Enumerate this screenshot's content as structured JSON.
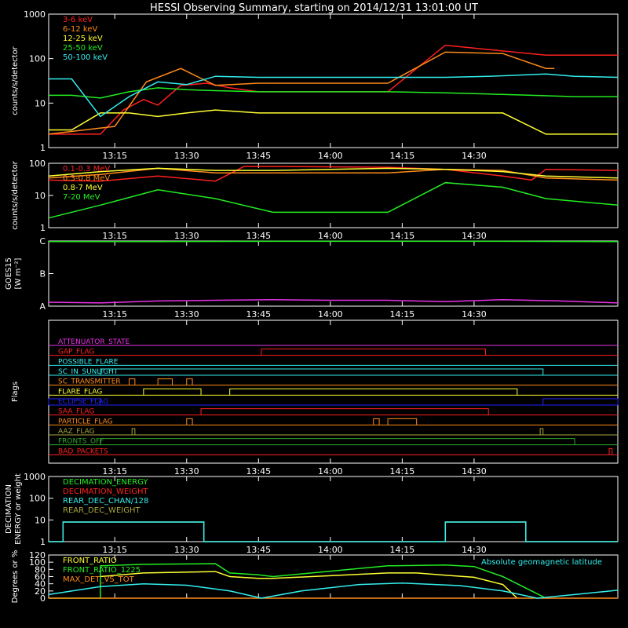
{
  "title": "HESSI Observing Summary, starting on 2014/12/31 13:01:00 UT",
  "x_ticks": [
    "13:15",
    "13:30",
    "13:45",
    "14:00",
    "14:15",
    "14:30"
  ],
  "colors": {
    "c1": "#ff2020",
    "c2": "#ff8c1a",
    "c3": "#ffff33",
    "c4": "#22ee22",
    "c5": "#33eeee",
    "magenta": "#e633e6",
    "blue": "#2222ff",
    "olive": "#a8a43c",
    "green2": "#2eaa2e",
    "cyan": "#33eeee"
  },
  "chart_data": [
    {
      "type": "line",
      "id": "p1",
      "ylabel": "counts/s/detector",
      "yscale": "log",
      "ylim": [
        1,
        1000
      ],
      "ytick_labels": [
        "1",
        "10",
        "100",
        "1000"
      ],
      "legend": [
        "3-6 keV",
        "6-12 keV",
        "12-25 keV",
        "25-50 keV",
        "50-100 keV"
      ],
      "series": [
        {
          "name": "3-6 keV",
          "color": "c1",
          "points": [
            [
              13.02,
              2
            ],
            [
              13.2,
              2
            ],
            [
              13.28,
              7
            ],
            [
              13.35,
              12
            ],
            [
              13.4,
              9
            ],
            [
              13.48,
              25
            ],
            [
              13.57,
              28
            ],
            [
              13.65,
              22
            ],
            [
              13.75,
              18
            ],
            [
              13.8,
              18
            ],
            [
              14.2,
              18
            ],
            [
              14.4,
              200
            ],
            [
              14.55,
              160
            ],
            [
              14.75,
              120
            ],
            [
              14.78,
              120
            ],
            [
              15.0,
              120
            ]
          ]
        },
        {
          "name": "6-12 keV",
          "color": "c2",
          "points": [
            [
              13.02,
              2
            ],
            [
              13.25,
              3
            ],
            [
              13.36,
              30
            ],
            [
              13.48,
              60
            ],
            [
              13.6,
              25
            ],
            [
              13.75,
              28
            ],
            [
              13.8,
              28
            ],
            [
              14.2,
              28
            ],
            [
              14.4,
              140
            ],
            [
              14.6,
              130
            ],
            [
              14.75,
              60
            ],
            [
              14.78,
              60
            ]
          ]
        },
        {
          "name": "12-25 keV",
          "color": "c3",
          "points": [
            [
              13.02,
              2.5
            ],
            [
              13.1,
              2.5
            ],
            [
              13.2,
              6
            ],
            [
              13.3,
              6
            ],
            [
              13.4,
              5
            ],
            [
              13.5,
              6
            ],
            [
              13.6,
              7
            ],
            [
              13.75,
              6
            ],
            [
              13.8,
              6
            ],
            [
              14.2,
              6
            ],
            [
              14.4,
              6
            ],
            [
              14.6,
              6
            ],
            [
              14.75,
              2
            ],
            [
              15.0,
              2
            ]
          ]
        },
        {
          "name": "25-50 keV",
          "color": "c4",
          "points": [
            [
              13.02,
              15
            ],
            [
              13.1,
              15
            ],
            [
              13.2,
              13
            ],
            [
              13.3,
              18
            ],
            [
              13.4,
              22
            ],
            [
              13.5,
              20
            ],
            [
              13.6,
              19
            ],
            [
              13.75,
              18
            ],
            [
              13.8,
              18
            ],
            [
              14.2,
              18
            ],
            [
              14.4,
              17
            ],
            [
              14.55,
              16
            ],
            [
              14.7,
              15
            ],
            [
              14.85,
              14
            ],
            [
              15.0,
              14
            ]
          ]
        },
        {
          "name": "50-100 keV",
          "color": "c5",
          "points": [
            [
              13.02,
              35
            ],
            [
              13.1,
              35
            ],
            [
              13.2,
              5
            ],
            [
              13.3,
              14
            ],
            [
              13.4,
              30
            ],
            [
              13.5,
              26
            ],
            [
              13.6,
              40
            ],
            [
              13.75,
              38
            ],
            [
              13.8,
              38
            ],
            [
              14.2,
              38
            ],
            [
              14.4,
              38
            ],
            [
              14.55,
              40
            ],
            [
              14.75,
              45
            ],
            [
              14.85,
              40
            ],
            [
              15.0,
              38
            ]
          ]
        }
      ]
    },
    {
      "type": "line",
      "id": "p2",
      "ylabel": "counts/s/detector",
      "yscale": "log",
      "ylim": [
        1,
        100
      ],
      "ytick_labels": [
        "1",
        "10",
        "100"
      ],
      "legend": [
        "0.1-0.3 MeV",
        "0.3-0.8 MeV",
        "0.8-7 MeV",
        "7-20 MeV"
      ],
      "series": [
        {
          "name": "0.1-0.3 MeV",
          "color": "c1",
          "points": [
            [
              13.02,
              30
            ],
            [
              13.2,
              28
            ],
            [
              13.4,
              40
            ],
            [
              13.6,
              28
            ],
            [
              13.7,
              80
            ],
            [
              13.8,
              80
            ],
            [
              14.2,
              75
            ],
            [
              14.4,
              65
            ],
            [
              14.6,
              40
            ],
            [
              14.7,
              30
            ],
            [
              14.75,
              65
            ],
            [
              15.0,
              60
            ]
          ]
        },
        {
          "name": "0.3-0.8 MeV",
          "color": "c2",
          "points": [
            [
              13.02,
              35
            ],
            [
              13.2,
              45
            ],
            [
              13.4,
              70
            ],
            [
              13.6,
              50
            ],
            [
              13.8,
              50
            ],
            [
              14.2,
              50
            ],
            [
              14.4,
              65
            ],
            [
              14.6,
              60
            ],
            [
              14.75,
              35
            ],
            [
              15.0,
              30
            ]
          ]
        },
        {
          "name": "0.8-7 MeV",
          "color": "c3",
          "points": [
            [
              13.02,
              40
            ],
            [
              13.2,
              55
            ],
            [
              13.4,
              70
            ],
            [
              13.6,
              60
            ],
            [
              13.8,
              60
            ],
            [
              14.2,
              70
            ],
            [
              14.4,
              65
            ],
            [
              14.6,
              55
            ],
            [
              14.75,
              40
            ],
            [
              15.0,
              35
            ]
          ]
        },
        {
          "name": "7-20 MeV",
          "color": "c4",
          "points": [
            [
              13.02,
              2
            ],
            [
              13.2,
              5
            ],
            [
              13.4,
              15
            ],
            [
              13.6,
              8
            ],
            [
              13.8,
              3
            ],
            [
              14.2,
              3
            ],
            [
              14.4,
              25
            ],
            [
              14.6,
              18
            ],
            [
              14.75,
              8
            ],
            [
              15.0,
              5
            ]
          ]
        }
      ]
    },
    {
      "type": "line",
      "id": "p3",
      "ylabel": "GOES15",
      "ylabel2": "[W m⁻²]",
      "ytick_labels": [
        "A",
        "B",
        "C"
      ],
      "ylim": [
        1,
        3
      ],
      "series": [
        {
          "color": "c4",
          "points": [
            [
              13.02,
              2.98
            ],
            [
              13.4,
              2.98
            ],
            [
              13.8,
              2.99
            ],
            [
              14.2,
              2.99
            ],
            [
              14.6,
              2.99
            ],
            [
              15.0,
              2.98
            ]
          ]
        },
        {
          "color": "magenta",
          "points": [
            [
              13.02,
              1.12
            ],
            [
              13.2,
              1.1
            ],
            [
              13.4,
              1.16
            ],
            [
              13.6,
              1.18
            ],
            [
              13.8,
              1.2
            ],
            [
              14.0,
              1.18
            ],
            [
              14.2,
              1.18
            ],
            [
              14.4,
              1.14
            ],
            [
              14.6,
              1.2
            ],
            [
              14.8,
              1.16
            ],
            [
              15.0,
              1.1
            ]
          ]
        }
      ]
    },
    {
      "type": "line",
      "id": "p4",
      "ylabel": "Flags",
      "flags": [
        {
          "name": "ATTENUATOR_STATE",
          "color": "magenta"
        },
        {
          "name": "GAP_FLAG",
          "color": "c1"
        },
        {
          "name": "POSSIBLE_FLARE",
          "color": "cyan"
        },
        {
          "name": "SC_IN_SUNLIGHT",
          "color": "cyan"
        },
        {
          "name": "SC_TRANSMITTER",
          "color": "c2"
        },
        {
          "name": "FLARE_FLAG",
          "color": "c3"
        },
        {
          "name": "ECLIPSE_FLAG",
          "color": "blue"
        },
        {
          "name": "SAA_FLAG",
          "color": "c1"
        },
        {
          "name": "PARTICLE_FLAG",
          "color": "c2"
        },
        {
          "name": "AAZ_FLAG",
          "color": "olive"
        },
        {
          "name": "FRONTS_OFF",
          "color": "green2"
        },
        {
          "name": "BAD_PACKETS",
          "color": "c1"
        }
      ],
      "flag_intervals": {
        "GAP_FLAG": [
          [
            13.76,
            14.54
          ]
        ],
        "SC_IN_SUNLIGHT": [
          [
            13.2,
            14.74
          ]
        ],
        "SC_TRANSMITTER": [
          [
            13.3,
            13.32
          ],
          [
            13.4,
            13.45
          ],
          [
            13.5,
            13.52
          ]
        ],
        "FLARE_FLAG": [
          [
            13.35,
            13.55
          ],
          [
            13.65,
            14.65
          ]
        ],
        "ECLIPSE_FLAG": [
          [
            13.02,
            13.2
          ],
          [
            14.74,
            15.0
          ]
        ],
        "SAA_FLAG": [
          [
            13.55,
            14.55
          ]
        ],
        "PARTICLE_FLAG": [
          [
            13.5,
            13.52
          ],
          [
            14.15,
            14.17
          ],
          [
            14.2,
            14.3
          ]
        ],
        "AAZ_FLAG": [
          [
            13.31,
            13.32
          ],
          [
            14.73,
            14.74
          ]
        ],
        "FRONTS_OFF": [
          [
            13.2,
            14.85
          ]
        ],
        "BAD_PACKETS": [
          [
            14.97,
            14.98
          ]
        ]
      }
    },
    {
      "type": "line",
      "id": "p5",
      "ylabel": "DECIMATION",
      "ylabel2": "ENERGY or weight",
      "yscale": "log",
      "ylim": [
        1,
        1000
      ],
      "ytick_labels": [
        "1",
        "10",
        "100",
        "1000"
      ],
      "legend": [
        "DECIMATION_ENERGY",
        "DECIMATION_WEIGHT",
        "REAR_DEC_CHAN/128",
        "REAR_DEC_WEIGHT"
      ],
      "series": [
        {
          "name": "REAR_DEC_WEIGHT",
          "color": "olive",
          "points": [
            [
              13.02,
              1
            ],
            [
              13.07,
              1
            ],
            [
              13.07,
              8
            ],
            [
              13.56,
              8
            ],
            [
              13.56,
              1
            ],
            [
              14.4,
              1
            ],
            [
              14.4,
              8
            ],
            [
              14.68,
              8
            ],
            [
              14.68,
              1
            ],
            [
              15.0,
              1
            ]
          ]
        },
        {
          "name": "REAR_DEC_CHAN/128",
          "color": "cyan",
          "points": [
            [
              13.02,
              1
            ],
            [
              13.07,
              1
            ],
            [
              13.07,
              8
            ],
            [
              13.56,
              8
            ],
            [
              13.56,
              1
            ],
            [
              14.4,
              1
            ],
            [
              14.4,
              8
            ],
            [
              14.68,
              8
            ],
            [
              14.68,
              1
            ],
            [
              15.0,
              1
            ]
          ]
        }
      ]
    },
    {
      "type": "line",
      "id": "p6",
      "ylabel": "Degrees or %",
      "ylim": [
        0,
        120
      ],
      "ytick_labels": [
        "0",
        "20",
        "40",
        "60",
        "80",
        "100",
        "120"
      ],
      "legend": [
        "FRONT_RATIO",
        "FRONT_RATIO_1225",
        "MAX_DET_VS_TOT"
      ],
      "annotation": "Absolute geomagnetic latitude",
      "series": [
        {
          "name": "FRONT_RATIO",
          "color": "c3",
          "points": [
            [
              13.2,
              60
            ],
            [
              13.35,
              70
            ],
            [
              13.6,
              74
            ],
            [
              13.65,
              60
            ],
            [
              13.75,
              55
            ],
            [
              13.8,
              55
            ],
            [
              14.2,
              70
            ],
            [
              14.3,
              70
            ],
            [
              14.4,
              64
            ],
            [
              14.5,
              58
            ],
            [
              14.6,
              38
            ],
            [
              14.65,
              0
            ]
          ]
        },
        {
          "name": "FRONT_RATIO_1225",
          "color": "c4",
          "points": [
            [
              13.02,
              0
            ],
            [
              13.2,
              0
            ],
            [
              13.2,
              90
            ],
            [
              13.35,
              94
            ],
            [
              13.6,
              96
            ],
            [
              13.65,
              70
            ],
            [
              13.75,
              65
            ],
            [
              13.8,
              60
            ],
            [
              14.2,
              90
            ],
            [
              14.4,
              92
            ],
            [
              14.5,
              88
            ],
            [
              14.6,
              60
            ],
            [
              14.7,
              20
            ],
            [
              14.75,
              0
            ]
          ]
        },
        {
          "name": "MAX_DET_VS_TOT",
          "color": "c2",
          "points": [
            [
              13.02,
              0
            ],
            [
              15.0,
              0
            ]
          ]
        },
        {
          "name": "Absolute geomagnetic latitude",
          "color": "cyan",
          "points": [
            [
              13.02,
              10
            ],
            [
              13.2,
              32
            ],
            [
              13.35,
              40
            ],
            [
              13.5,
              36
            ],
            [
              13.65,
              20
            ],
            [
              13.76,
              0
            ],
            [
              13.9,
              20
            ],
            [
              14.1,
              38
            ],
            [
              14.25,
              42
            ],
            [
              14.45,
              35
            ],
            [
              14.6,
              20
            ],
            [
              14.72,
              0
            ],
            [
              14.85,
              10
            ],
            [
              15.0,
              22
            ]
          ]
        }
      ]
    }
  ]
}
